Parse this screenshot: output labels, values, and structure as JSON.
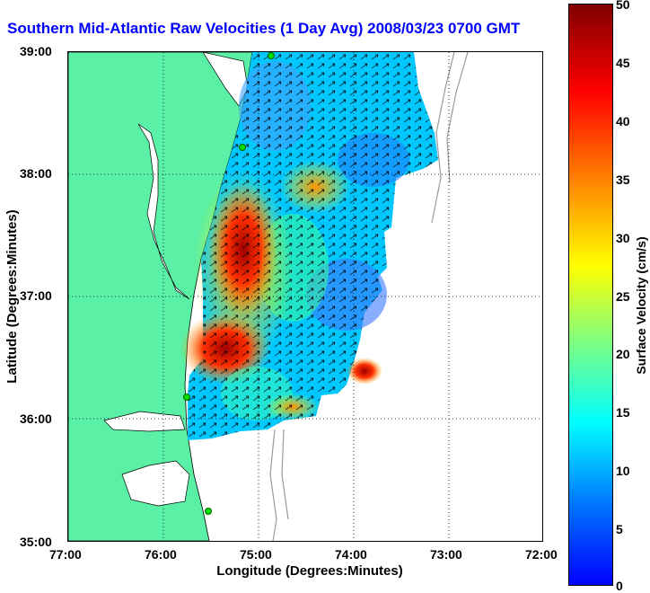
{
  "title": "Southern Mid-Atlantic Raw Velocities (1 Day Avg) 2008/03/23 0700 GMT",
  "xlabel": "Longitude (Degrees:Minutes)",
  "ylabel": "Latitude (Degrees:Minutes)",
  "x_ticks": [
    "77:00",
    "76:00",
    "75:00",
    "74:00",
    "73:00",
    "72:00"
  ],
  "y_ticks": [
    "39:00",
    "38:00",
    "37:00",
    "36:00",
    "35:00"
  ],
  "colorbar": {
    "label": "Surface Velocity (cm/s)",
    "ticks": [
      "50",
      "45",
      "40",
      "35",
      "30",
      "25",
      "20",
      "15",
      "10",
      "5",
      "0"
    ],
    "range": [
      0,
      50
    ]
  },
  "colors": {
    "land": "#5af0a6",
    "water": "#ffffff",
    "coast": "#000000",
    "title": "#0000ff",
    "station": "#00e000"
  }
}
